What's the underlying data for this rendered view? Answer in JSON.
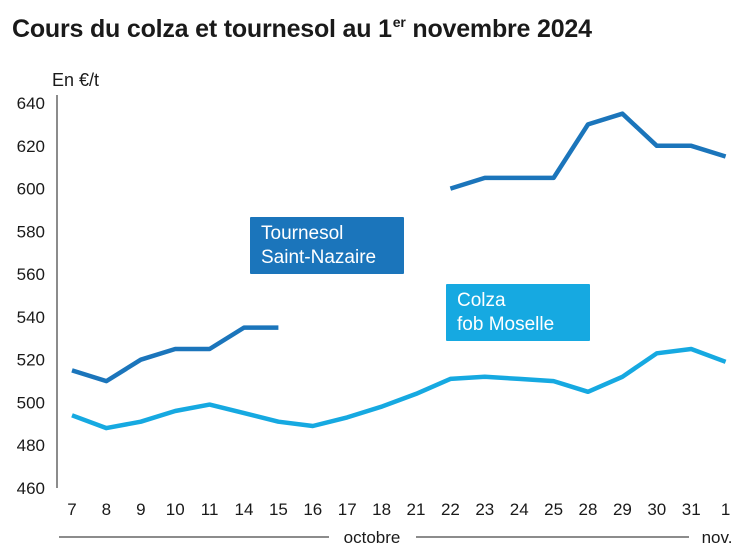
{
  "title": {
    "prefix": "Cours du colza et tournesol au 1",
    "sup": "er",
    "suffix": " novembre 2024"
  },
  "unit_label": "En €/t",
  "chart_data": {
    "type": "line",
    "title": "Cours du colza et tournesol au 1er novembre 2024",
    "ylabel": "En €/t",
    "ylim": [
      460,
      640
    ],
    "yticks": [
      460,
      480,
      500,
      520,
      540,
      560,
      580,
      600,
      620,
      640
    ],
    "categories": [
      "7",
      "8",
      "9",
      "10",
      "11",
      "14",
      "15",
      "16",
      "17",
      "18",
      "21",
      "22",
      "23",
      "24",
      "25",
      "28",
      "29",
      "30",
      "31",
      "1"
    ],
    "months": [
      {
        "label": "octobre",
        "from": 0,
        "to": 18
      },
      {
        "label": "nov.",
        "from": 19,
        "to": 19
      }
    ],
    "grid": false,
    "series": [
      {
        "name": "Tournesol Saint-Nazaire",
        "label_lines": [
          "Tournesol",
          "Saint-Nazaire"
        ],
        "color": "#1b75bb",
        "values": [
          515,
          510,
          520,
          525,
          525,
          535,
          535,
          null,
          null,
          null,
          null,
          600,
          605,
          605,
          605,
          630,
          635,
          620,
          620,
          615
        ]
      },
      {
        "name": "Colza fob Moselle",
        "label_lines": [
          "Colza",
          "fob Moselle"
        ],
        "color": "#16a9e1",
        "values": [
          494,
          488,
          491,
          496,
          499,
          495,
          491,
          489,
          493,
          498,
          504,
          511,
          512,
          511,
          510,
          505,
          512,
          523,
          525,
          519
        ]
      }
    ]
  }
}
